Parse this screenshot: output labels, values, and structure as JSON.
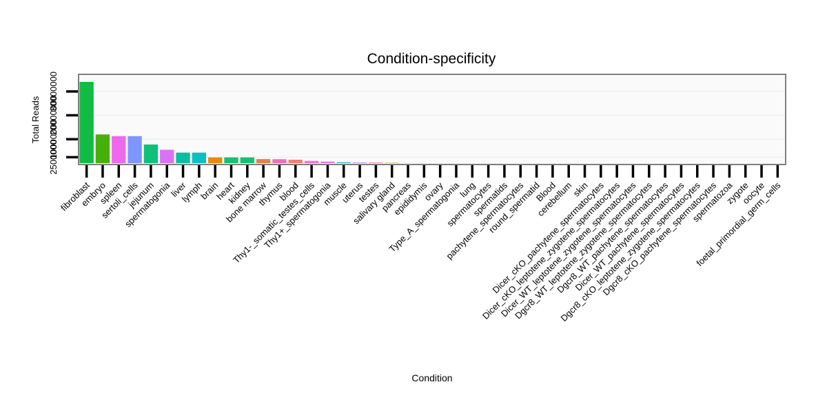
{
  "chart_data": {
    "type": "bar",
    "title": "Condition-specificity",
    "xlabel": "Condition",
    "ylabel": "Total Reads",
    "ylim": [
      0,
      36000000
    ],
    "y_ticks": [
      2500000,
      10000000,
      20000000,
      30000000
    ],
    "y_tick_labels": [
      "2500000",
      "10000000",
      "20000000",
      "30000000"
    ],
    "grid": true,
    "legend": "none",
    "categories": [
      "fibroblast",
      "embryo",
      "spleen",
      "sertoli_cells",
      "jejunum",
      "spermatogonia",
      "liver",
      "lymph",
      "brain",
      "heart",
      "kidney",
      "bone marrow",
      "thymus",
      "blood",
      "Thy1-_somatic_testes_cells",
      "Thy1+_spermatogonia",
      "muscle",
      "uterus",
      "testes",
      "salivary gland",
      "pancreas",
      "epididymis",
      "ovary",
      "Type_A_spermatogonia",
      "lung",
      "spermatocytes",
      "spermatids",
      "pachytene_spermatocytes",
      "round_spermatid",
      "Blood",
      "cerebellum",
      "skin",
      "Dicer_cKO_pachytene_spermatocytes",
      "Dicer_cKO_leptotene_zygotene_spermatocytes",
      "Dicer_WT_leptotene_zygotene_spermatocytes",
      "Dgcr8_WT_leptotene_zygotene_spermatocytes",
      "Dgcr8_WT_pachytene_spermatocytes",
      "Dicer_WT_pachytene_spermatocytes",
      "Dgcr8_cKO_leptotene_zygotene_spermatocytes",
      "Dgcr8_cKO_pachytene_spermatocytes",
      "spermatozoa",
      "zygote",
      "oocyte",
      "foetal_primordial_germ_cells"
    ],
    "values": [
      34000000,
      12000000,
      11300000,
      11300000,
      7800000,
      5600000,
      4400000,
      4400000,
      2400000,
      2400000,
      2400000,
      1700000,
      1650000,
      1450000,
      950000,
      650000,
      350000,
      300000,
      250000,
      150000,
      0,
      0,
      0,
      0,
      0,
      0,
      0,
      0,
      0,
      0,
      0,
      0,
      0,
      0,
      0,
      0,
      0,
      0,
      0,
      0,
      0,
      0,
      0,
      0
    ],
    "colors": [
      "#12BB43",
      "#46B00A",
      "#EE68EE",
      "#7F95FF",
      "#0EC17B",
      "#D873F4",
      "#0CBEA0",
      "#0BBFC4",
      "#E98A0C",
      "#15C072",
      "#15C072",
      "#E67F4E",
      "#F16DB5",
      "#F08070",
      "#F86FD2",
      "#E07BE8",
      "#1DB6C9",
      "#C48DF5",
      "#F57C9C",
      "#C1A000",
      "#B8A200",
      "#9AAC00",
      "#75B300",
      "#40B800",
      "#00BC58",
      "#00C08D",
      "#00C1B2",
      "#00BFD0",
      "#00B9E6",
      "#00AEF6",
      "#78A2FF",
      "#A58AFF",
      "#C27CF4",
      "#D971E2",
      "#EA68CC",
      "#F564B4",
      "#FB6999",
      "#FB737C",
      "#F57D63",
      "#EE8840",
      "#E29300",
      "#D09C00",
      "#B7A600",
      "#98AE00"
    ]
  }
}
